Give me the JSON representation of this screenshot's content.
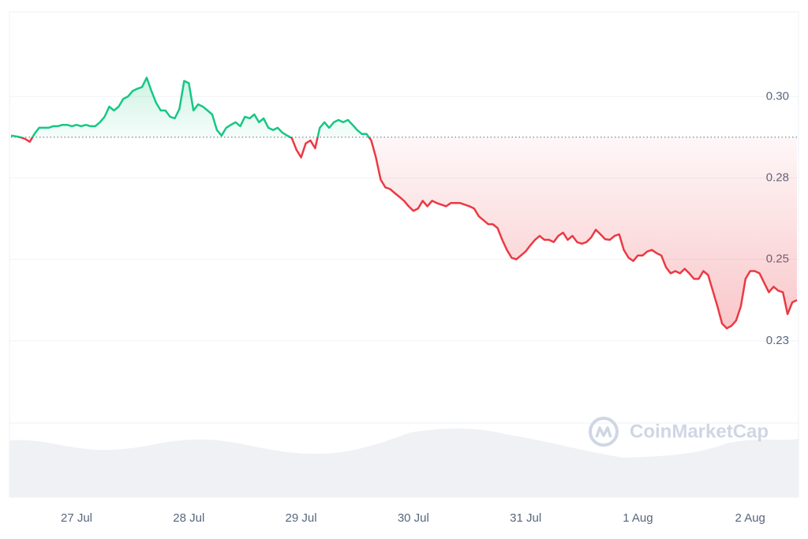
{
  "chart_data": {
    "type": "line",
    "watermark": "CoinMarketCap",
    "baseline": 0.2875,
    "up_color": "#16c784",
    "down_color": "#ea3943",
    "xlim": [
      0,
      168
    ],
    "xticks": [
      {
        "value": 14,
        "label": "27 Jul"
      },
      {
        "value": 38,
        "label": "28 Jul"
      },
      {
        "value": 62,
        "label": "29 Jul"
      },
      {
        "value": 86,
        "label": "30 Jul"
      },
      {
        "value": 110,
        "label": "31 Jul"
      },
      {
        "value": 134,
        "label": "1 Aug"
      },
      {
        "value": 158,
        "label": "2 Aug"
      }
    ],
    "ylim": [
      0.2,
      0.326
    ],
    "yticks": [
      {
        "value": 0.3,
        "label": "0.30"
      },
      {
        "value": 0.275,
        "label": "0.28"
      },
      {
        "value": 0.25,
        "label": "0.25"
      },
      {
        "value": 0.225,
        "label": "0.23"
      }
    ],
    "grid": true,
    "values": [
      0.288,
      0.2878,
      0.2875,
      0.287,
      0.2861,
      0.2885,
      0.2904,
      0.2904,
      0.2904,
      0.2909,
      0.2909,
      0.2913,
      0.2913,
      0.2909,
      0.2913,
      0.2909,
      0.2913,
      0.2909,
      0.2909,
      0.2921,
      0.2938,
      0.2969,
      0.2957,
      0.2969,
      0.2993,
      0.3,
      0.3017,
      0.3024,
      0.3029,
      0.3058,
      0.3017,
      0.2981,
      0.2957,
      0.2957,
      0.2938,
      0.2933,
      0.2962,
      0.3048,
      0.3041,
      0.2957,
      0.2976,
      0.2969,
      0.2957,
      0.2945,
      0.2897,
      0.288,
      0.2904,
      0.2913,
      0.2921,
      0.2909,
      0.2938,
      0.2933,
      0.2945,
      0.2921,
      0.2933,
      0.2904,
      0.2897,
      0.2904,
      0.2889,
      0.288,
      0.2873,
      0.2837,
      0.2813,
      0.2856,
      0.2865,
      0.2841,
      0.2904,
      0.2921,
      0.2904,
      0.2921,
      0.2928,
      0.2921,
      0.2928,
      0.2913,
      0.2897,
      0.2885,
      0.2885,
      0.2865,
      0.2813,
      0.2745,
      0.2721,
      0.2716,
      0.2704,
      0.2692,
      0.268,
      0.2663,
      0.2649,
      0.2656,
      0.268,
      0.2663,
      0.268,
      0.2673,
      0.2668,
      0.2663,
      0.2673,
      0.2673,
      0.2673,
      0.2668,
      0.2663,
      0.2656,
      0.2632,
      0.262,
      0.2608,
      0.2608,
      0.2596,
      0.256,
      0.2529,
      0.2505,
      0.25,
      0.2512,
      0.2524,
      0.2543,
      0.256,
      0.2572,
      0.256,
      0.256,
      0.2553,
      0.2572,
      0.2582,
      0.256,
      0.2572,
      0.2553,
      0.2548,
      0.2553,
      0.2567,
      0.2591,
      0.2577,
      0.2562,
      0.256,
      0.2572,
      0.2577,
      0.2529,
      0.2505,
      0.2495,
      0.2512,
      0.2512,
      0.2524,
      0.2529,
      0.2519,
      0.2512,
      0.2476,
      0.2457,
      0.2464,
      0.2457,
      0.2471,
      0.2457,
      0.244,
      0.244,
      0.2464,
      0.2452,
      0.2404,
      0.2356,
      0.2303,
      0.2288,
      0.2296,
      0.2312,
      0.2356,
      0.244,
      0.2464,
      0.2464,
      0.2457,
      0.2428,
      0.2399,
      0.2416,
      0.2404,
      0.2399,
      0.2332,
      0.2368,
      0.2375
    ]
  }
}
